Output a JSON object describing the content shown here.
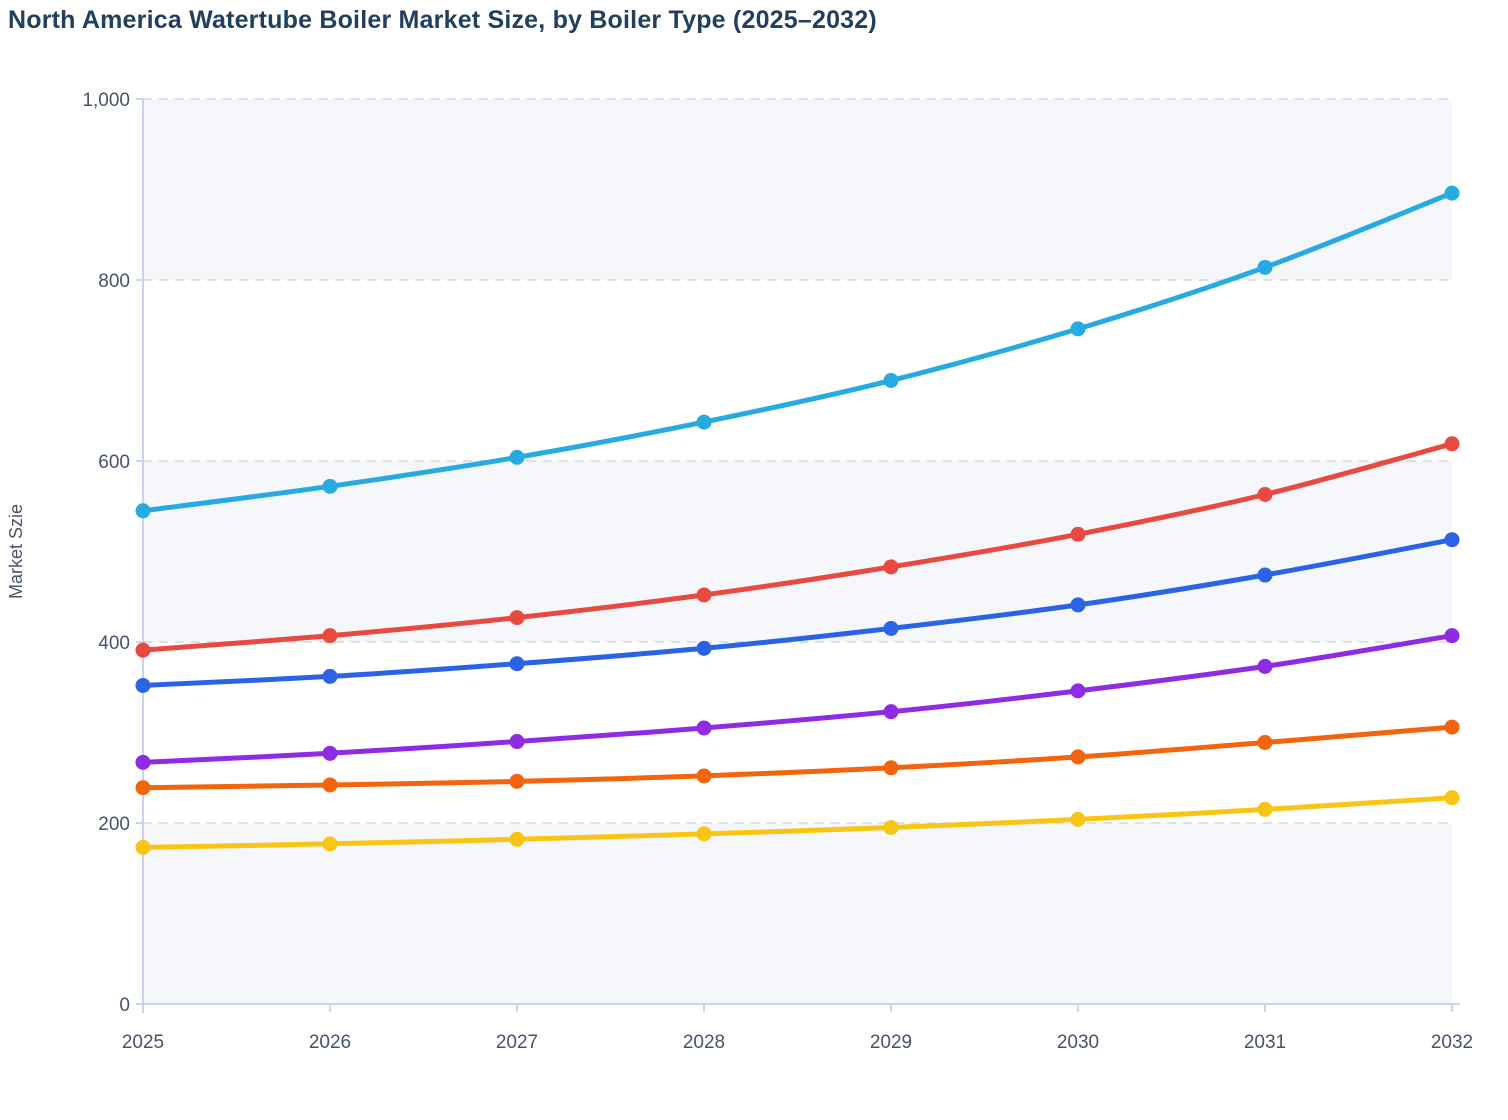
{
  "title": "North America Watertube Boiler Market Size, by Boiler Type (2025–2032)",
  "y_axis_label": "Market Szie",
  "chart_data": {
    "type": "line",
    "title": "North America Watertube Boiler Market Size, by Boiler Type (2025–2032)",
    "xlabel": "",
    "ylabel": "Market Szie",
    "x": [
      2025,
      2026,
      2027,
      2028,
      2029,
      2030,
      2031,
      2032
    ],
    "x_tick_labels": [
      "2025",
      "2026",
      "2027",
      "2028",
      "2029",
      "2030",
      "2031",
      "2032"
    ],
    "y_ticks": [
      0,
      200,
      400,
      600,
      800,
      1000
    ],
    "y_tick_labels": [
      "0",
      "200",
      "400",
      "600",
      "800",
      "1,000"
    ],
    "ylim": [
      0,
      1000
    ],
    "grid": "horizontal-dashed",
    "legend": "none",
    "marker": "circle",
    "series": [
      {
        "name": "series-cyan",
        "color": "#27aae1",
        "values": [
          545,
          572,
          604,
          643,
          689,
          746,
          814,
          896
        ]
      },
      {
        "name": "series-red",
        "color": "#e84a42",
        "values": [
          391,
          407,
          427,
          452,
          483,
          519,
          563,
          619
        ]
      },
      {
        "name": "series-blue",
        "color": "#2b63e6",
        "values": [
          352,
          362,
          376,
          393,
          415,
          441,
          474,
          513
        ]
      },
      {
        "name": "series-purple",
        "color": "#8f2be2",
        "values": [
          267,
          277,
          290,
          305,
          323,
          346,
          373,
          407
        ]
      },
      {
        "name": "series-orange",
        "color": "#f2640d",
        "values": [
          239,
          242,
          246,
          252,
          261,
          273,
          289,
          306
        ]
      },
      {
        "name": "series-yellow",
        "color": "#f8c514",
        "values": [
          173,
          177,
          182,
          188,
          195,
          204,
          215,
          228
        ]
      }
    ],
    "style_colors": {
      "title": "#21405f",
      "axis_line": "#c9d3ef",
      "gridline": "#dcdfe4",
      "tick_label": "#46536a",
      "y_axis_title": "#4a5568",
      "plot_band": "#f6f7fa",
      "background": "#ffffff"
    }
  }
}
